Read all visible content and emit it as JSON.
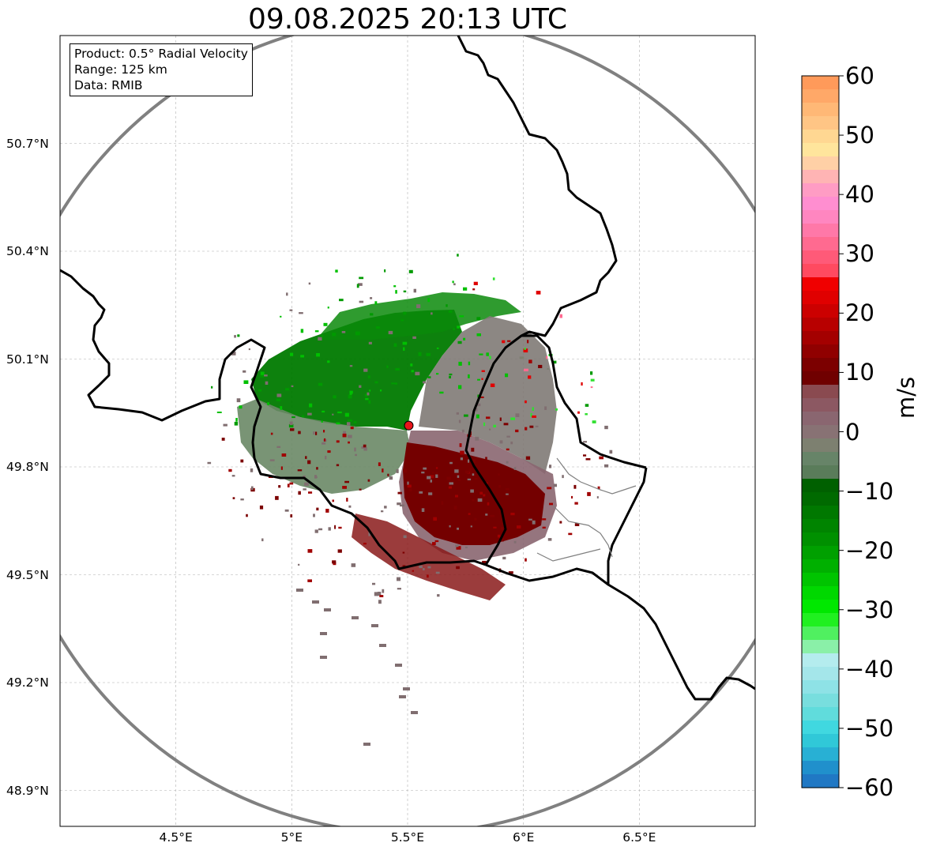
{
  "title": "09.08.2025 20:13 UTC",
  "info_box": {
    "line1": "Product: 0.5° Radial Velocity",
    "line2": "Range: 125 km",
    "line3": "Data: RMIB"
  },
  "map": {
    "lon_range": [
      4.0,
      7.0
    ],
    "lat_range": [
      48.8,
      51.0
    ],
    "lat_ticks": [
      {
        "value": 50.7,
        "label": "50.7°N"
      },
      {
        "value": 50.4,
        "label": "50.4°N"
      },
      {
        "value": 50.1,
        "label": "50.1°N"
      },
      {
        "value": 49.8,
        "label": "49.8°N"
      },
      {
        "value": 49.5,
        "label": "49.5°N"
      },
      {
        "value": 49.2,
        "label": "49.2°N"
      },
      {
        "value": 48.9,
        "label": "48.9°N"
      }
    ],
    "lon_ticks": [
      {
        "value": 4.5,
        "label": "4.5°E"
      },
      {
        "value": 5.0,
        "label": "5°E"
      },
      {
        "value": 5.5,
        "label": "5.5°E"
      },
      {
        "value": 6.0,
        "label": "6°E"
      },
      {
        "value": 6.5,
        "label": "6.5°E"
      }
    ],
    "radar_site": {
      "lon": 5.505,
      "lat": 49.915,
      "color": "#e8151b"
    },
    "range_ring_km": 125,
    "ring_color": "#808080",
    "border_color": "#000000",
    "grid": true
  },
  "colorbar": {
    "unit": "m/s",
    "min": -60,
    "max": 60,
    "ticks": [
      "60",
      "50",
      "40",
      "30",
      "20",
      "10",
      "0",
      "−10",
      "−20",
      "−30",
      "−40",
      "−50",
      "−60"
    ],
    "colors_top_to_bottom": [
      "#ff9a5a",
      "#ffa868",
      "#ffb876",
      "#ffc585",
      "#ffd792",
      "#ffe59c",
      "#ffd0a6",
      "#ffb4b4",
      "#ff9cc4",
      "#ff8ed0",
      "#ff86c0",
      "#ff78a8",
      "#ff6a90",
      "#ff5a78",
      "#ff4a60",
      "#f00000",
      "#e00000",
      "#cc0000",
      "#b80000",
      "#a40000",
      "#900000",
      "#7c0000",
      "#700000",
      "#8a4a50",
      "#8c5862",
      "#8a6670",
      "#887274",
      "#7d8070",
      "#678468",
      "#5a7c5a",
      "#006000",
      "#006a00",
      "#007800",
      "#008400",
      "#009000",
      "#00a000",
      "#00b000",
      "#00c400",
      "#00d800",
      "#00e800",
      "#20f020",
      "#50f060",
      "#8af0a8",
      "#b4ecee",
      "#a4e6ea",
      "#8ee2e6",
      "#78dede",
      "#60dcdc",
      "#40d8e0",
      "#30c8d8",
      "#28b0d4",
      "#2090cc",
      "#2078c4"
    ]
  }
}
